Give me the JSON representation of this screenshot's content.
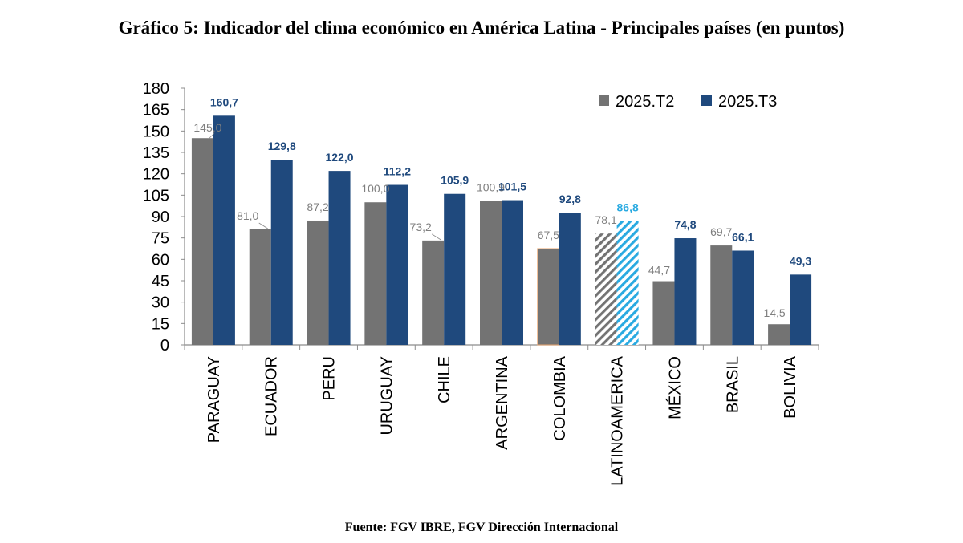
{
  "page": {
    "title": "Gráfico 5: Indicador del clima económico en América Latina - Principales países (en puntos)",
    "source": "Fuente: FGV IBRE, FGV Dirección Internacional"
  },
  "colors": {
    "series_t2": "#737373",
    "series_t3": "#1f497d",
    "label_t2": "#7f7f7f",
    "label_t3": "#1f497d",
    "latam_t3": "#29aae1",
    "latam_t3_label": "#29aae1",
    "colombia_outline": "#e8a36b"
  },
  "chart_data": {
    "type": "bar",
    "title": "Gráfico 5: Indicador del clima económico en América Latina - Principales países (en puntos)",
    "xlabel": "",
    "ylabel": "",
    "ylim": [
      0,
      180
    ],
    "yticks": [
      0,
      15,
      30,
      45,
      60,
      75,
      90,
      105,
      120,
      135,
      150,
      165,
      180
    ],
    "grid": false,
    "legend_position": "top-right",
    "categories": [
      "PARAGUAY",
      "ECUADOR",
      "PERU",
      "URUGUAY",
      "CHILE",
      "ARGENTINA",
      "COLOMBIA",
      "LATINOAMERICA",
      "MÉXICO",
      "BRASIL",
      "BOLIVIA"
    ],
    "series": [
      {
        "name": "2025.T2",
        "values": [
          145.0,
          81.0,
          87.2,
          100.0,
          73.2,
          100.9,
          67.5,
          78.1,
          44.7,
          69.7,
          14.5
        ],
        "labels": [
          "145,0",
          "81,0",
          "87,2",
          "100,0",
          "73,2",
          "100,9",
          "67,5",
          "78,1",
          "44,7",
          "69,7",
          "14,5"
        ]
      },
      {
        "name": "2025.T3",
        "values": [
          160.7,
          129.8,
          122.0,
          112.2,
          105.9,
          101.5,
          92.8,
          86.8,
          74.8,
          66.1,
          49.3
        ],
        "labels": [
          "160,7",
          "129,8",
          "122,0",
          "112,2",
          "105,9",
          "101,5",
          "92,8",
          "86,8",
          "74,8",
          "66,1",
          "49,3"
        ]
      }
    ],
    "highlighted_category": "LATINOAMERICA",
    "highlight_style": "hatched"
  }
}
